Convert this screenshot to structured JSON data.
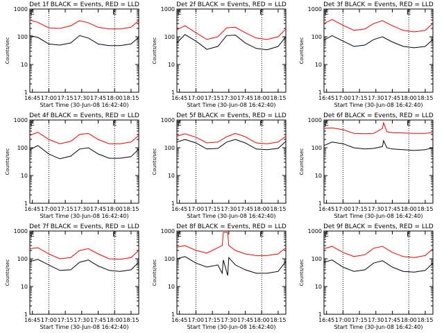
{
  "chart_data": {
    "type": "line",
    "y_scale": "log",
    "ylim": [
      1,
      1000
    ],
    "y_tick_labels": [
      "1",
      "10",
      "100",
      "1000"
    ],
    "x_tick_labels": [
      "16:45",
      "17:00",
      "17:15",
      "17:30",
      "17:45",
      "18:00",
      "18:15"
    ],
    "x_range": [
      "16:42:40",
      "18:22:00"
    ],
    "markers": [
      {
        "label": "E",
        "time": "16:45"
      },
      {
        "label": "E",
        "time": "18:00"
      }
    ],
    "dotted_lines": [
      "17:00",
      "18:00"
    ],
    "colors": {
      "events": "#000000",
      "lld": "#ff0000"
    },
    "panels": [
      {
        "title": "Det 1f  BLACK = Events, RED = LLD",
        "ylabel": "Counts/sec",
        "xlabel": "Start Time (30-Jun-08 16:42:40)",
        "series": [
          {
            "color": "#ff0000",
            "x": [
              "16:42:40",
              "16:50",
              "17:00",
              "17:10",
              "17:20",
              "17:28",
              "17:36",
              "17:45",
              "17:55",
              "18:05",
              "18:15",
              "18:22"
            ],
            "y": [
              400,
              330,
              210,
              200,
              250,
              380,
              320,
              220,
              190,
              190,
              220,
              380
            ]
          },
          {
            "color": "#000000",
            "x": [
              "16:42:40",
              "16:50",
              "17:00",
              "17:10",
              "17:20",
              "17:28",
              "17:36",
              "17:45",
              "17:55",
              "18:05",
              "18:15",
              "18:22"
            ],
            "y": [
              110,
              95,
              55,
              50,
              60,
              110,
              90,
              55,
              48,
              48,
              55,
              95
            ]
          }
        ]
      },
      {
        "title": "Det 2f  BLACK = Events, RED = LLD",
        "ylabel": "Counts/sec",
        "xlabel": "Start Time (30-Jun-08 16:42:40)",
        "series": [
          {
            "color": "#ff0000",
            "x": [
              "16:42:40",
              "16:50",
              "17:00",
              "17:10",
              "17:20",
              "17:28",
              "17:36",
              "17:45",
              "17:55",
              "18:05",
              "18:15",
              "18:22"
            ],
            "y": [
              180,
              250,
              140,
              80,
              100,
              210,
              220,
              140,
              90,
              80,
              100,
              190
            ]
          },
          {
            "color": "#000000",
            "x": [
              "16:42:40",
              "16:50",
              "17:00",
              "17:10",
              "17:20",
              "17:28",
              "17:36",
              "17:45",
              "17:55",
              "18:05",
              "18:15",
              "18:22"
            ],
            "y": [
              60,
              120,
              70,
              35,
              45,
              110,
              115,
              60,
              38,
              34,
              45,
              100
            ]
          }
        ]
      },
      {
        "title": "Det 3f  BLACK = Events, RED = LLD",
        "ylabel": "Counts/sec",
        "xlabel": "Start Time (30-Jun-08 16:42:40)",
        "series": [
          {
            "color": "#ff0000",
            "x": [
              "16:42:40",
              "16:50",
              "17:00",
              "17:10",
              "17:20",
              "17:28",
              "17:36",
              "17:45",
              "17:55",
              "18:05",
              "18:15",
              "18:22"
            ],
            "y": [
              300,
              420,
              260,
              170,
              190,
              300,
              380,
              250,
              170,
              150,
              170,
              300
            ]
          },
          {
            "color": "#000000",
            "x": [
              "16:42:40",
              "16:50",
              "17:00",
              "17:10",
              "17:20",
              "17:28",
              "17:36",
              "17:45",
              "17:55",
              "18:05",
              "18:15",
              "18:22"
            ],
            "y": [
              75,
              110,
              70,
              45,
              50,
              80,
              100,
              65,
              45,
              40,
              45,
              80
            ]
          }
        ]
      },
      {
        "title": "Det 4f  BLACK = Events, RED = LLD",
        "ylabel": "Counts/sec",
        "xlabel": "Start Time (30-Jun-08 16:42:40)",
        "series": [
          {
            "color": "#ff0000",
            "x": [
              "16:42:40",
              "16:50",
              "17:00",
              "17:10",
              "17:20",
              "17:28",
              "17:36",
              "17:45",
              "17:55",
              "18:05",
              "18:15",
              "18:22"
            ],
            "y": [
              280,
              360,
              200,
              140,
              170,
              300,
              330,
              200,
              140,
              140,
              160,
              280
            ]
          },
          {
            "color": "#000000",
            "x": [
              "16:42:40",
              "16:50",
              "17:00",
              "17:10",
              "17:20",
              "17:28",
              "17:36",
              "17:45",
              "17:55",
              "18:05",
              "18:15",
              "18:22"
            ],
            "y": [
              85,
              120,
              60,
              40,
              50,
              90,
              100,
              60,
              42,
              42,
              48,
              90
            ]
          }
        ]
      },
      {
        "title": "Det 5f  BLACK = Events, RED = LLD",
        "ylabel": "Counts/sec",
        "xlabel": "Start Time (30-Jun-08 16:42:40)",
        "series": [
          {
            "color": "#ff0000",
            "x": [
              "16:42:40",
              "16:50",
              "17:00",
              "17:10",
              "17:20",
              "17:28",
              "17:36",
              "17:45",
              "17:55",
              "18:05",
              "18:15",
              "18:22"
            ],
            "y": [
              260,
              320,
              240,
              150,
              160,
              250,
              330,
              250,
              150,
              140,
              160,
              260
            ]
          },
          {
            "color": "#000000",
            "x": [
              "16:42:40",
              "16:50",
              "17:00",
              "17:10",
              "17:20",
              "17:28",
              "17:36",
              "17:45",
              "17:55",
              "18:05",
              "18:15",
              "18:22"
            ],
            "y": [
              160,
              200,
              150,
              90,
              95,
              160,
              200,
              150,
              90,
              85,
              95,
              170
            ]
          }
        ]
      },
      {
        "title": "Det 6f  BLACK = Events, RED = LLD",
        "ylabel": "Counts/sec",
        "xlabel": "Start Time (30-Jun-08 16:42:40)",
        "series": [
          {
            "color": "#ff0000",
            "x": [
              "16:42:40",
              "16:50",
              "17:00",
              "17:10",
              "17:20",
              "17:28",
              "17:36",
              "17:37",
              "17:40",
              "17:45",
              "17:55",
              "18:05",
              "18:15",
              "18:22"
            ],
            "y": [
              500,
              520,
              450,
              330,
              320,
              330,
              500,
              800,
              380,
              350,
              340,
              330,
              330,
              350
            ]
          },
          {
            "color": "#000000",
            "x": [
              "16:42:40",
              "16:50",
              "17:00",
              "17:10",
              "17:20",
              "17:28",
              "17:36",
              "17:37",
              "17:40",
              "17:45",
              "17:55",
              "18:05",
              "18:15",
              "18:22"
            ],
            "y": [
              120,
              160,
              140,
              100,
              90,
              95,
              110,
              180,
              100,
              90,
              85,
              80,
              85,
              100
            ]
          }
        ]
      },
      {
        "title": "Det 7f  BLACK = Events, RED = LLD",
        "ylabel": "Counts/sec",
        "xlabel": "Start Time (30-Jun-08 16:42:40)",
        "series": [
          {
            "color": "#ff0000",
            "x": [
              "16:42:40",
              "16:50",
              "17:00",
              "17:10",
              "17:20",
              "17:28",
              "17:36",
              "17:45",
              "17:55",
              "18:05",
              "18:15",
              "18:22"
            ],
            "y": [
              230,
              250,
              150,
              100,
              110,
              200,
              230,
              150,
              100,
              95,
              110,
              200
            ]
          },
          {
            "color": "#000000",
            "x": [
              "16:42:40",
              "16:50",
              "17:00",
              "17:10",
              "17:20",
              "17:28",
              "17:36",
              "17:45",
              "17:55",
              "18:05",
              "18:15",
              "18:22"
            ],
            "y": [
              80,
              95,
              60,
              38,
              40,
              75,
              90,
              55,
              38,
              35,
              40,
              75
            ]
          }
        ]
      },
      {
        "title": "Det 8f  BLACK = Events, RED = LLD",
        "ylabel": "Counts/sec",
        "xlabel": "Start Time (30-Jun-08 16:42:40)",
        "series": [
          {
            "color": "#ff0000",
            "x": [
              "16:42:40",
              "16:50",
              "17:00",
              "17:10",
              "17:20",
              "17:24",
              "17:25",
              "17:29",
              "17:30",
              "17:36",
              "17:45",
              "17:55",
              "18:05",
              "18:15",
              "18:22"
            ],
            "y": [
              260,
              300,
              200,
              160,
              250,
              300,
              1000,
              1000,
              300,
              200,
              150,
              130,
              130,
              150,
              250
            ]
          },
          {
            "color": "#000000",
            "x": [
              "16:42:40",
              "16:50",
              "17:00",
              "17:10",
              "17:20",
              "17:24",
              "17:25",
              "17:29",
              "17:30",
              "17:36",
              "17:45",
              "17:55",
              "18:05",
              "18:15",
              "18:22"
            ],
            "y": [
              100,
              120,
              70,
              50,
              60,
              30,
              90,
              25,
              110,
              60,
              40,
              30,
              30,
              35,
              80
            ]
          }
        ]
      },
      {
        "title": "Det 9f  BLACK = Events, RED = LLD",
        "ylabel": "Counts/sec",
        "xlabel": "Start Time (30-Jun-08 16:42:40)",
        "series": [
          {
            "color": "#ff0000",
            "x": [
              "16:42:40",
              "16:50",
              "17:00",
              "17:10",
              "17:20",
              "17:28",
              "17:36",
              "17:45",
              "17:55",
              "18:05",
              "18:15",
              "18:22"
            ],
            "y": [
              230,
              280,
              170,
              120,
              140,
              240,
              280,
              170,
              120,
              110,
              130,
              230
            ]
          },
          {
            "color": "#000000",
            "x": [
              "16:42:40",
              "16:50",
              "17:00",
              "17:10",
              "17:20",
              "17:28",
              "17:36",
              "17:45",
              "17:55",
              "18:05",
              "18:15",
              "18:22"
            ],
            "y": [
              75,
              90,
              50,
              35,
              40,
              70,
              85,
              50,
              35,
              33,
              38,
              70
            ]
          }
        ]
      }
    ]
  }
}
